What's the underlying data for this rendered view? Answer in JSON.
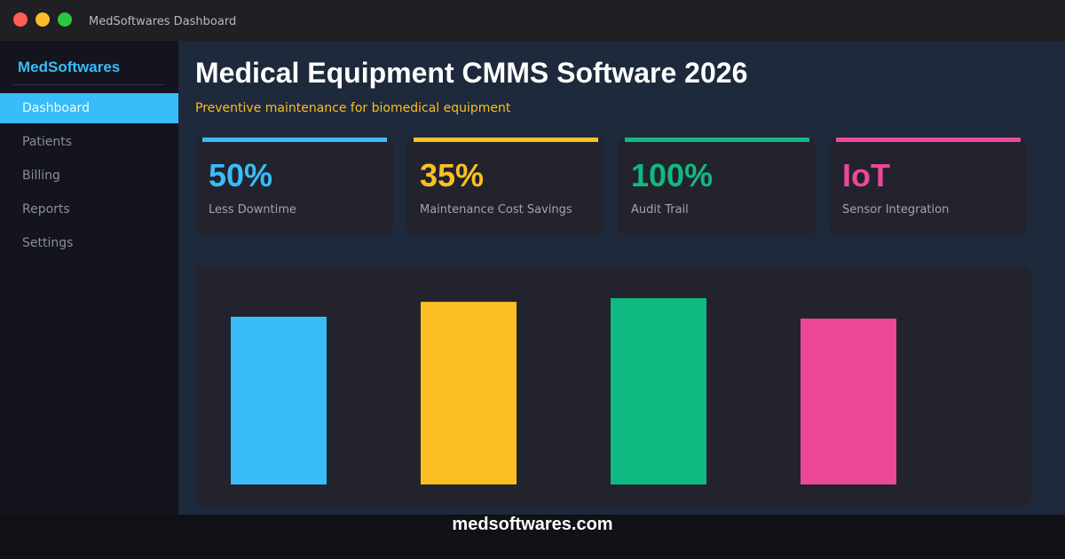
{
  "window": {
    "title": "MedSoftwares Dashboard",
    "controls": [
      {
        "name": "close",
        "color": "#ff5f57"
      },
      {
        "name": "minimize",
        "color": "#febc2e"
      },
      {
        "name": "maximize",
        "color": "#28c840"
      }
    ]
  },
  "sidebar": {
    "brand": "MedSoftwares",
    "items": [
      {
        "label": "Dashboard",
        "active": true
      },
      {
        "label": "Patients"
      },
      {
        "label": "Billing"
      },
      {
        "label": "Reports"
      },
      {
        "label": "Settings"
      }
    ]
  },
  "header": {
    "title": "Medical Equipment CMMS Software 2026",
    "subtitle": "Preventive maintenance for biomedical equipment"
  },
  "stats": [
    {
      "value": "50%",
      "label": "Less Downtime",
      "color": "#38bdf8"
    },
    {
      "value": "35%",
      "label": "Maintenance Cost Savings",
      "color": "#fbbf24"
    },
    {
      "value": "100%",
      "label": "Audit Trail",
      "color": "#10b981"
    },
    {
      "value": "IoT",
      "label": "Sensor Integration",
      "color": "#ec4899"
    }
  ],
  "chart_data": {
    "type": "bar",
    "values": [
      90,
      98,
      100,
      89
    ],
    "colors": [
      "#38bdf8",
      "#fbbf24",
      "#10b981",
      "#ec4899"
    ],
    "ylim": [
      0,
      100
    ],
    "grid": false,
    "axes": false
  },
  "footer": {
    "text": "medsoftwares.com"
  }
}
